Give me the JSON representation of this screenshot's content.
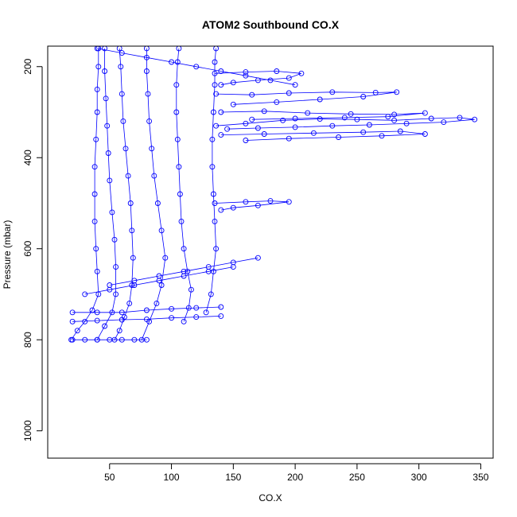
{
  "chart_data": {
    "type": "scatter",
    "title": "ATOM2 Southbound CO.X",
    "xlabel": "CO.X",
    "ylabel": "Pressure (mbar)",
    "xlim": [
      0,
      360
    ],
    "ylim": [
      1060,
      155
    ],
    "y_reversed": true,
    "grid": false,
    "legend": "none",
    "x_ticks": [
      50,
      100,
      150,
      200,
      250,
      300,
      350
    ],
    "y_ticks": [
      200,
      400,
      600,
      800,
      1000
    ],
    "marker": "open-circle",
    "connected_lines": true,
    "colors": {
      "series": "#0000ff",
      "axis": "#000000"
    },
    "series": [
      {
        "values": [
          [
            19,
            800
          ],
          [
            24,
            780
          ],
          [
            30,
            760
          ],
          [
            36,
            735
          ],
          [
            41,
            700
          ],
          [
            40,
            650
          ],
          [
            39,
            600
          ],
          [
            38,
            540
          ],
          [
            38,
            480
          ],
          [
            38,
            420
          ],
          [
            39,
            360
          ],
          [
            40,
            300
          ],
          [
            40,
            250
          ],
          [
            41,
            200
          ],
          [
            41,
            160
          ]
        ]
      },
      {
        "values": [
          [
            40,
            800
          ],
          [
            46,
            770
          ],
          [
            52,
            740
          ],
          [
            55,
            700
          ],
          [
            55,
            640
          ],
          [
            54,
            580
          ],
          [
            52,
            520
          ],
          [
            50,
            450
          ],
          [
            49,
            390
          ],
          [
            48,
            330
          ],
          [
            47,
            270
          ],
          [
            46,
            210
          ],
          [
            46,
            160
          ]
        ]
      },
      {
        "values": [
          [
            54,
            800
          ],
          [
            58,
            780
          ],
          [
            62,
            750
          ],
          [
            66,
            720
          ],
          [
            68,
            680
          ],
          [
            69,
            620
          ],
          [
            68,
            560
          ],
          [
            67,
            500
          ],
          [
            65,
            440
          ],
          [
            63,
            380
          ],
          [
            61,
            320
          ],
          [
            60,
            260
          ],
          [
            59,
            200
          ],
          [
            58,
            160
          ]
        ]
      },
      {
        "values": [
          [
            76,
            800
          ],
          [
            82,
            760
          ],
          [
            88,
            720
          ],
          [
            92,
            680
          ],
          [
            95,
            620
          ],
          [
            92,
            560
          ],
          [
            89,
            500
          ],
          [
            86,
            440
          ],
          [
            84,
            380
          ],
          [
            82,
            320
          ],
          [
            81,
            260
          ],
          [
            80,
            210
          ],
          [
            80,
            160
          ]
        ]
      },
      {
        "values": [
          [
            110,
            760
          ],
          [
            114,
            730
          ],
          [
            116,
            690
          ],
          [
            113,
            650
          ],
          [
            110,
            600
          ],
          [
            108,
            540
          ],
          [
            107,
            480
          ],
          [
            106,
            420
          ],
          [
            105,
            360
          ],
          [
            104,
            300
          ],
          [
            104,
            240
          ],
          [
            105,
            190
          ],
          [
            106,
            160
          ]
        ]
      },
      {
        "values": [
          [
            128,
            740
          ],
          [
            132,
            700
          ],
          [
            134,
            650
          ],
          [
            136,
            600
          ],
          [
            135,
            540
          ],
          [
            134,
            480
          ],
          [
            133,
            420
          ],
          [
            133,
            360
          ],
          [
            134,
            300
          ],
          [
            135,
            240
          ],
          [
            135,
            190
          ],
          [
            136,
            160
          ]
        ]
      },
      {
        "values": [
          [
            136,
            330
          ],
          [
            160,
            325
          ],
          [
            190,
            318
          ],
          [
            220,
            315
          ],
          [
            250,
            316
          ],
          [
            280,
            318
          ],
          [
            310,
            314
          ],
          [
            333,
            312
          ],
          [
            345,
            316
          ],
          [
            320,
            322
          ],
          [
            290,
            325
          ],
          [
            260,
            328
          ],
          [
            230,
            330
          ],
          [
            200,
            333
          ],
          [
            170,
            335
          ],
          [
            145,
            337
          ]
        ]
      },
      {
        "values": [
          [
            136,
            260
          ],
          [
            165,
            262
          ],
          [
            195,
            258
          ],
          [
            230,
            256
          ],
          [
            265,
            257
          ],
          [
            282,
            256
          ],
          [
            255,
            266
          ],
          [
            220,
            272
          ],
          [
            185,
            278
          ],
          [
            150,
            283
          ]
        ]
      },
      {
        "values": [
          [
            140,
            300
          ],
          [
            175,
            298
          ],
          [
            210,
            302
          ],
          [
            245,
            304
          ],
          [
            280,
            305
          ],
          [
            305,
            302
          ],
          [
            275,
            310
          ],
          [
            240,
            312
          ],
          [
            200,
            314
          ],
          [
            165,
            316
          ]
        ]
      },
      {
        "values": [
          [
            140,
            350
          ],
          [
            175,
            348
          ],
          [
            215,
            346
          ],
          [
            255,
            344
          ],
          [
            285,
            342
          ],
          [
            305,
            348
          ],
          [
            270,
            352
          ],
          [
            235,
            355
          ],
          [
            195,
            358
          ],
          [
            160,
            362
          ]
        ]
      },
      {
        "values": [
          [
            135,
            215
          ],
          [
            160,
            212
          ],
          [
            185,
            210
          ],
          [
            205,
            215
          ],
          [
            195,
            225
          ],
          [
            170,
            230
          ],
          [
            150,
            235
          ],
          [
            140,
            240
          ]
        ]
      },
      {
        "values": [
          [
            135,
            500
          ],
          [
            160,
            497
          ],
          [
            180,
            495
          ],
          [
            195,
            497
          ],
          [
            170,
            505
          ],
          [
            150,
            510
          ],
          [
            140,
            515
          ]
        ]
      },
      {
        "values": [
          [
            20,
            740
          ],
          [
            40,
            740
          ],
          [
            60,
            740
          ],
          [
            80,
            735
          ],
          [
            100,
            732
          ],
          [
            120,
            730
          ],
          [
            140,
            728
          ]
        ]
      },
      {
        "values": [
          [
            20,
            760
          ],
          [
            40,
            758
          ],
          [
            60,
            756
          ],
          [
            80,
            755
          ],
          [
            100,
            752
          ],
          [
            120,
            750
          ],
          [
            140,
            748
          ]
        ]
      },
      {
        "values": [
          [
            20,
            800
          ],
          [
            30,
            800
          ],
          [
            40,
            800
          ],
          [
            50,
            800
          ],
          [
            60,
            800
          ],
          [
            70,
            800
          ],
          [
            80,
            800
          ]
        ]
      },
      {
        "values": [
          [
            40,
            160
          ],
          [
            60,
            170
          ],
          [
            80,
            180
          ],
          [
            100,
            190
          ],
          [
            120,
            200
          ],
          [
            140,
            210
          ],
          [
            160,
            220
          ],
          [
            180,
            230
          ],
          [
            200,
            240
          ]
        ]
      },
      {
        "values": [
          [
            50,
            680
          ],
          [
            70,
            670
          ],
          [
            90,
            660
          ],
          [
            110,
            650
          ],
          [
            130,
            640
          ],
          [
            150,
            630
          ],
          [
            170,
            620
          ]
        ]
      },
      {
        "values": [
          [
            30,
            700
          ],
          [
            50,
            690
          ],
          [
            70,
            680
          ],
          [
            90,
            670
          ],
          [
            110,
            660
          ],
          [
            130,
            650
          ],
          [
            150,
            640
          ]
        ]
      }
    ]
  }
}
